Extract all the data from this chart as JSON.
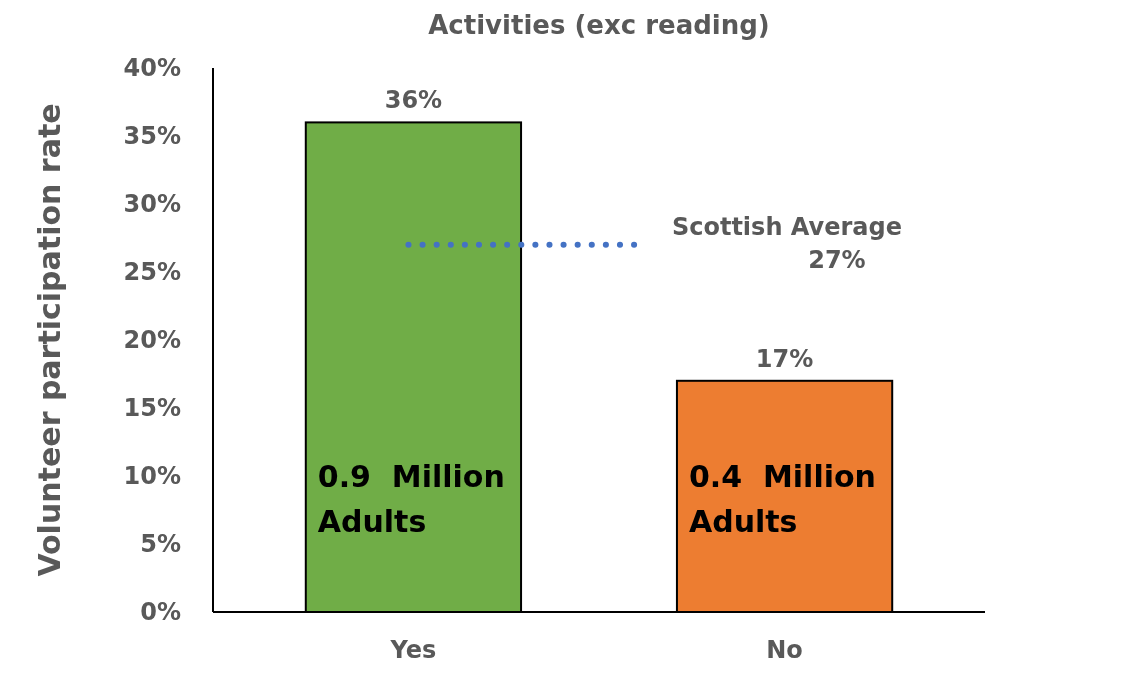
{
  "chart_data": {
    "type": "bar",
    "title": "Activities (exc reading)",
    "ylabel": "Volunteer participation rate",
    "categories": [
      "Yes",
      "No"
    ],
    "values": [
      36,
      17
    ],
    "colors": [
      "#70ad47",
      "#ed7d31"
    ],
    "value_labels": [
      "36%",
      "17%"
    ],
    "ylim": [
      0,
      40
    ],
    "yticks": [
      {
        "value": 0,
        "label": "0%"
      },
      {
        "value": 5,
        "label": "5%"
      },
      {
        "value": 10,
        "label": "10%"
      },
      {
        "value": 15,
        "label": "15%"
      },
      {
        "value": 20,
        "label": "20%"
      },
      {
        "value": 25,
        "label": "25%"
      },
      {
        "value": 30,
        "label": "30%"
      },
      {
        "value": 35,
        "label": "35%"
      },
      {
        "value": 40,
        "label": "40%"
      }
    ],
    "ref_lines": [
      {
        "axis": "y",
        "value": 27,
        "label": "Scottish Average 27%",
        "color": "#4472c4",
        "line_style": "dotted"
      }
    ],
    "annotations": [
      "0.9  Million Adults",
      "0.4  Million Adults"
    ],
    "grid": false
  }
}
